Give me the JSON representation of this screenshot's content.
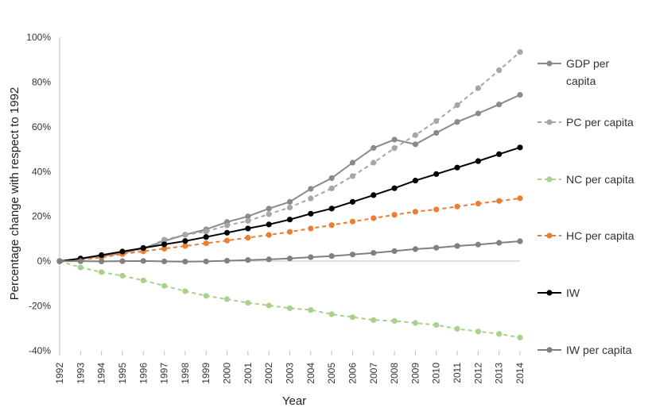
{
  "chart_data": {
    "type": "line",
    "title": "",
    "xlabel": "Year",
    "ylabel": "Percentage change with respect to 1992",
    "ylim": [
      -40,
      100
    ],
    "yticks": [
      -40,
      -20,
      0,
      20,
      40,
      60,
      80,
      100
    ],
    "ytick_labels": [
      "-40%",
      "-20%",
      "0%",
      "20%",
      "40%",
      "60%",
      "80%",
      "100%"
    ],
    "x": [
      "1992",
      "1993",
      "1994",
      "1995",
      "1996",
      "1997",
      "1998",
      "1999",
      "2000",
      "2001",
      "2002",
      "2003",
      "2004",
      "2005",
      "2006",
      "2007",
      "2008",
      "2009",
      "2010",
      "2011",
      "2012",
      "2013",
      "2014"
    ],
    "grid": false,
    "legend_position": "right",
    "series": [
      {
        "name": "GDP per capita",
        "legend_lines": [
          "GDP per",
          "capita"
        ],
        "color": "#8a8a8a",
        "dashed": false,
        "values": [
          0,
          1.0,
          2.2,
          3.6,
          5.8,
          9.0,
          11.8,
          14.2,
          17.5,
          20.0,
          23.5,
          26.5,
          32.3,
          37.1,
          44.0,
          50.6,
          54.3,
          52.2,
          57.3,
          62.2,
          66.0,
          70.0,
          74.3
        ]
      },
      {
        "name": "PC per capita",
        "legend_lines": [
          "PC per capita"
        ],
        "color": "#a6a6a6",
        "dashed": true,
        "values": [
          0,
          0.6,
          1.6,
          3.2,
          5.6,
          9.6,
          11.8,
          13.2,
          16.0,
          18.0,
          21.0,
          24.0,
          28.0,
          32.5,
          38.0,
          44.0,
          50.5,
          56.3,
          62.6,
          69.7,
          77.3,
          85.3,
          93.4
        ]
      },
      {
        "name": "NC per capita",
        "legend_lines": [
          "NC per capita"
        ],
        "color": "#a9d18e",
        "dashed": true,
        "values": [
          0,
          -2.8,
          -4.9,
          -6.5,
          -8.6,
          -11.0,
          -13.4,
          -15.5,
          -17.0,
          -18.6,
          -19.8,
          -21.0,
          -21.8,
          -23.7,
          -25.0,
          -26.3,
          -26.7,
          -27.6,
          -28.5,
          -30.2,
          -31.4,
          -32.5,
          -34.1
        ]
      },
      {
        "name": "HC per capita",
        "legend_lines": [
          "HC per capita"
        ],
        "color": "#ed7d31",
        "dashed": true,
        "values": [
          0,
          0.8,
          1.9,
          3.2,
          4.4,
          5.6,
          6.8,
          8.0,
          9.2,
          10.5,
          11.7,
          13.1,
          14.6,
          16.1,
          17.7,
          19.2,
          20.7,
          22.1,
          23.1,
          24.4,
          25.7,
          26.9,
          28.1
        ]
      },
      {
        "name": "IW",
        "legend_lines": [
          "IW"
        ],
        "color": "#000000",
        "dashed": false,
        "values": [
          0,
          1.2,
          2.7,
          4.3,
          5.9,
          7.5,
          9.0,
          10.8,
          12.7,
          14.6,
          16.4,
          18.6,
          21.2,
          23.5,
          26.5,
          29.5,
          32.6,
          36.0,
          38.9,
          41.8,
          44.7,
          47.8,
          50.8
        ]
      },
      {
        "name": "IW per capita",
        "legend_lines": [
          "IW per capita"
        ],
        "color": "#808080",
        "dashed": false,
        "values": [
          0,
          0.0,
          -0.1,
          0.0,
          0.1,
          -0.1,
          -0.2,
          -0.1,
          0.2,
          0.5,
          0.8,
          1.2,
          1.8,
          2.3,
          3.0,
          3.7,
          4.5,
          5.4,
          6.0,
          6.8,
          7.4,
          8.2,
          8.9
        ]
      }
    ]
  }
}
